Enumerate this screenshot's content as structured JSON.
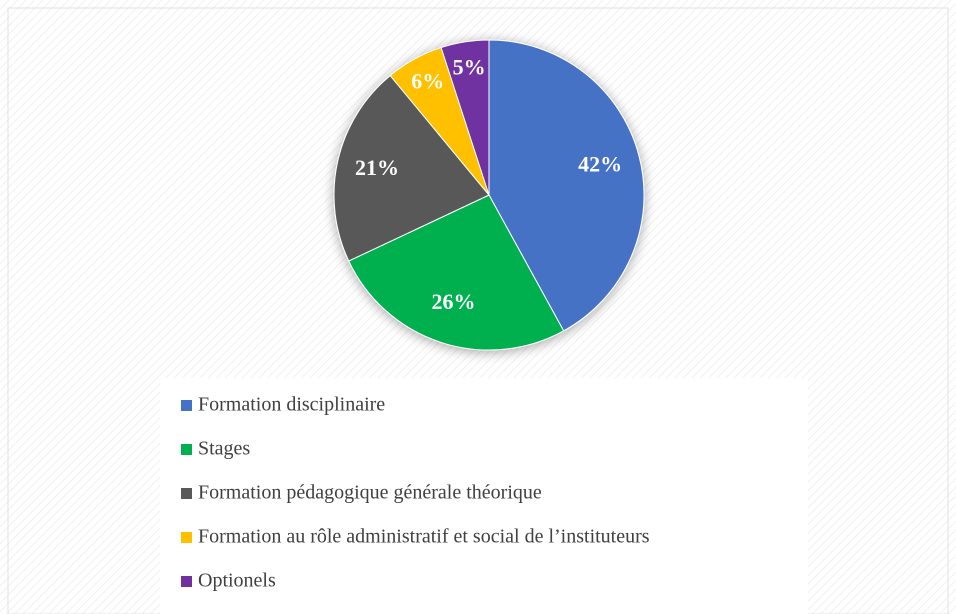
{
  "chart_data": {
    "type": "pie",
    "categories": [
      "Formation disciplinaire",
      "Stages",
      "Formation pédagogique générale théorique",
      "Formation au rôle administratif et social de l’instituteurs",
      "Optionels"
    ],
    "values": [
      42,
      26,
      21,
      6,
      5
    ],
    "value_labels": [
      "42%",
      "26%",
      "21%",
      "6%",
      "5%"
    ],
    "colors": [
      "#4472c4",
      "#00b050",
      "#595959",
      "#ffc000",
      "#7030a0"
    ],
    "legend": "bottom"
  }
}
